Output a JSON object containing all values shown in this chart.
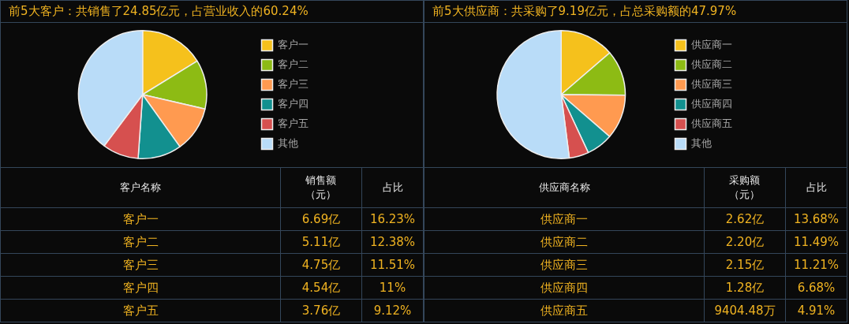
{
  "chart_data": [
    {
      "type": "pie",
      "title": "前5大客户：共销售了24.85亿元，占营业收入的60.24%",
      "categories": [
        "客户一",
        "客户二",
        "客户三",
        "客户四",
        "客户五",
        "其他"
      ],
      "values": [
        16.23,
        12.38,
        11.51,
        11,
        9.12,
        39.76
      ],
      "colors": [
        "#f5c11c",
        "#8dbb14",
        "#ff9a50",
        "#12908f",
        "#d6504f",
        "#b9dcf8"
      ],
      "legend": "right",
      "annotations": [
        "客户名称",
        "销售额（元）",
        "占比",
        "6.69亿",
        "5.11亿",
        "4.75亿",
        "4.54亿",
        "3.76亿",
        "16.23%",
        "12.38%",
        "11.51%",
        "11%",
        "9.12%"
      ]
    },
    {
      "type": "pie",
      "title": "前5大供应商：共采购了9.19亿元，占总采购额的47.97%",
      "categories": [
        "供应商一",
        "供应商二",
        "供应商三",
        "供应商四",
        "供应商五",
        "其他"
      ],
      "values": [
        13.68,
        11.49,
        11.21,
        6.68,
        4.91,
        52.03
      ],
      "colors": [
        "#f5c11c",
        "#8dbb14",
        "#ff9a50",
        "#12908f",
        "#d6504f",
        "#b9dcf8"
      ],
      "legend": "right",
      "annotations": [
        "供应商名称",
        "采购额（元）",
        "占比",
        "2.62亿",
        "2.20亿",
        "2.15亿",
        "1.28亿",
        "9404.48万",
        "13.68%",
        "11.49%",
        "11.21%",
        "6.68%",
        "4.91%"
      ]
    }
  ]
}
